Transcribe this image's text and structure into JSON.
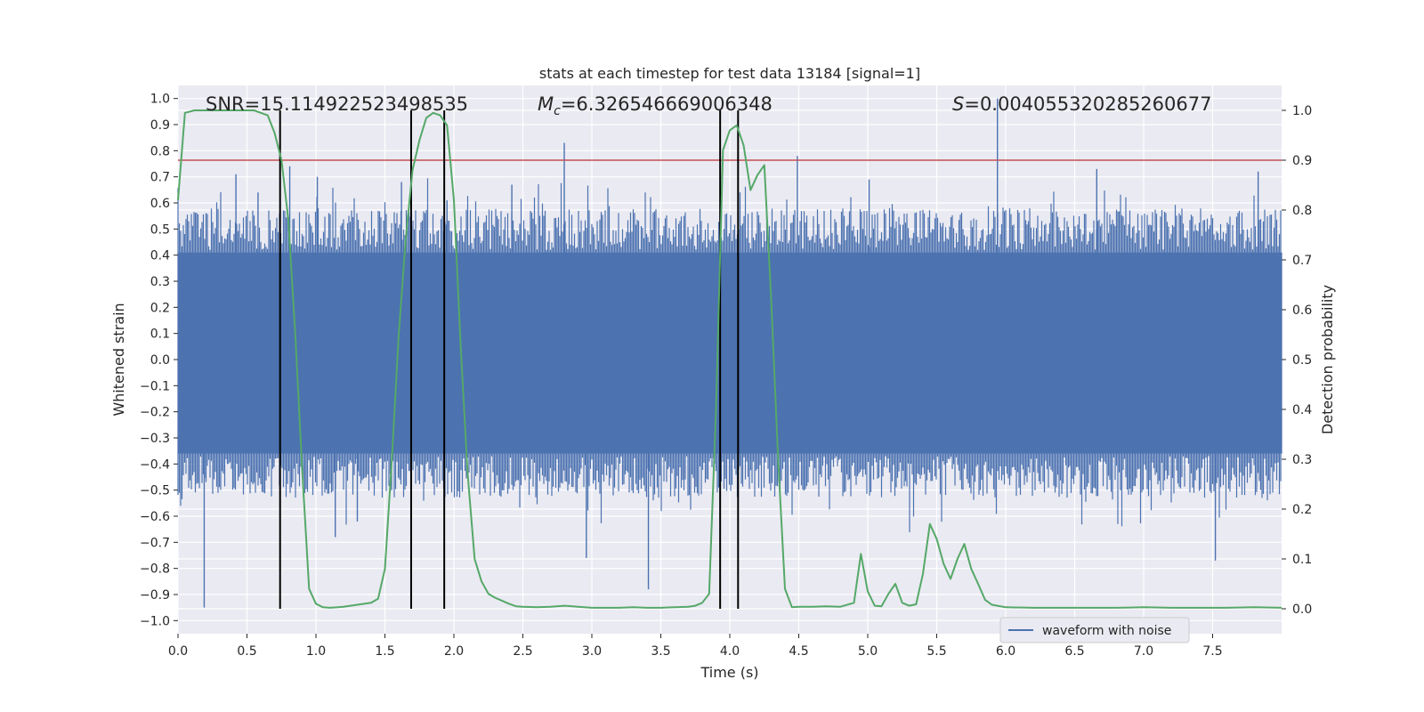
{
  "chart_data": {
    "type": "line",
    "title": "stats at each timestep for test data 13184 [signal=1]",
    "xlabel": "Time (s)",
    "ylabel": "Whitened strain",
    "y2label": "Detection probability",
    "xlim": [
      0.0,
      8.0
    ],
    "ylim": [
      -1.05,
      1.05
    ],
    "y2lim": [
      -0.05,
      1.05
    ],
    "x_ticks": [
      0.0,
      0.5,
      1.0,
      1.5,
      2.0,
      2.5,
      3.0,
      3.5,
      4.0,
      4.5,
      5.0,
      5.5,
      6.0,
      6.5,
      7.0,
      7.5
    ],
    "x_tick_labels": [
      "0.0",
      "0.5",
      "1.0",
      "1.5",
      "2.0",
      "2.5",
      "3.0",
      "3.5",
      "4.0",
      "4.5",
      "5.0",
      "5.5",
      "6.0",
      "6.5",
      "7.0",
      "7.5"
    ],
    "y_ticks": [
      -1.0,
      -0.9,
      -0.8,
      -0.7,
      -0.6,
      -0.5,
      -0.4,
      -0.3,
      -0.2,
      -0.1,
      0.0,
      0.1,
      0.2,
      0.3,
      0.4,
      0.5,
      0.6,
      0.7,
      0.8,
      0.9,
      1.0
    ],
    "y_tick_labels": [
      "−1.0",
      "−0.9",
      "−0.8",
      "−0.7",
      "−0.6",
      "−0.5",
      "−0.4",
      "−0.3",
      "−0.2",
      "−0.1",
      "0.0",
      "0.1",
      "0.2",
      "0.3",
      "0.4",
      "0.5",
      "0.6",
      "0.7",
      "0.8",
      "0.9",
      "1.0"
    ],
    "y2_ticks": [
      0.0,
      0.1,
      0.2,
      0.3,
      0.4,
      0.5,
      0.6,
      0.7,
      0.8,
      0.9,
      1.0
    ],
    "y2_tick_labels": [
      "0.0",
      "0.1",
      "0.2",
      "0.3",
      "0.4",
      "0.5",
      "0.6",
      "0.7",
      "0.8",
      "0.9",
      "1.0"
    ],
    "grid": true,
    "legend": {
      "position": "bottom-right",
      "entries": [
        {
          "label": "waveform with noise",
          "color": "#4c72b0"
        }
      ]
    },
    "annotations": {
      "snr_label": "SNR=15.114922523498535",
      "mc_prefix": "M",
      "mc_sub": "c",
      "mc_value": "=6.326546669006348",
      "s_prefix": "S",
      "s_value": "=0.004055320285260677"
    },
    "threshold": {
      "y2": 0.9,
      "color": "#c44e52"
    },
    "vertical_markers": [
      0.74,
      1.69,
      1.93,
      3.93,
      4.06
    ],
    "marker_color": "#000000",
    "waveform": {
      "name": "waveform with noise",
      "color": "#4c72b0",
      "core_band": [
        -0.36,
        0.41
      ],
      "spikes": [
        {
          "x": 0.19,
          "y": -0.95
        },
        {
          "x": 0.42,
          "y": 0.71
        },
        {
          "x": 0.58,
          "y": 0.64
        },
        {
          "x": 0.81,
          "y": 0.74
        },
        {
          "x": 1.01,
          "y": 0.7
        },
        {
          "x": 1.14,
          "y": -0.68
        },
        {
          "x": 1.3,
          "y": -0.62
        },
        {
          "x": 1.62,
          "y": 0.68
        },
        {
          "x": 1.95,
          "y": 0.61
        },
        {
          "x": 2.42,
          "y": 0.67
        },
        {
          "x": 2.8,
          "y": 0.83
        },
        {
          "x": 2.96,
          "y": -0.76
        },
        {
          "x": 3.41,
          "y": -0.88
        },
        {
          "x": 4.49,
          "y": 0.78
        },
        {
          "x": 5.01,
          "y": 0.69
        },
        {
          "x": 5.94,
          "y": 1.0
        },
        {
          "x": 6.66,
          "y": 0.73
        },
        {
          "x": 7.52,
          "y": -0.77
        },
        {
          "x": 7.83,
          "y": 0.72
        }
      ]
    },
    "detection_probability": {
      "name": "detection probability",
      "color": "#55a868",
      "x": [
        0.0,
        0.05,
        0.12,
        0.25,
        0.4,
        0.55,
        0.65,
        0.7,
        0.75,
        0.8,
        0.85,
        0.9,
        0.95,
        1.0,
        1.05,
        1.1,
        1.2,
        1.3,
        1.4,
        1.45,
        1.5,
        1.55,
        1.6,
        1.65,
        1.7,
        1.75,
        1.8,
        1.85,
        1.9,
        1.95,
        2.0,
        2.05,
        2.1,
        2.15,
        2.2,
        2.25,
        2.3,
        2.4,
        2.45,
        2.5,
        2.6,
        2.7,
        2.8,
        2.9,
        3.0,
        3.1,
        3.2,
        3.3,
        3.4,
        3.5,
        3.6,
        3.7,
        3.75,
        3.8,
        3.85,
        3.9,
        3.95,
        4.0,
        4.05,
        4.1,
        4.15,
        4.2,
        4.25,
        4.3,
        4.35,
        4.4,
        4.45,
        4.5,
        4.6,
        4.7,
        4.8,
        4.9,
        4.95,
        5.0,
        5.05,
        5.1,
        5.15,
        5.2,
        5.25,
        5.3,
        5.35,
        5.4,
        5.45,
        5.5,
        5.55,
        5.6,
        5.65,
        5.7,
        5.75,
        5.8,
        5.85,
        5.9,
        6.0,
        6.2,
        6.4,
        6.6,
        6.8,
        7.0,
        7.2,
        7.4,
        7.6,
        7.8,
        8.0
      ],
      "y": [
        0.82,
        0.995,
        1.0,
        1.0,
        1.0,
        1.0,
        0.99,
        0.955,
        0.9,
        0.78,
        0.55,
        0.28,
        0.04,
        0.01,
        0.003,
        0.002,
        0.004,
        0.008,
        0.012,
        0.02,
        0.08,
        0.3,
        0.55,
        0.74,
        0.88,
        0.94,
        0.985,
        0.995,
        0.99,
        0.97,
        0.82,
        0.52,
        0.27,
        0.1,
        0.055,
        0.03,
        0.022,
        0.01,
        0.005,
        0.004,
        0.003,
        0.004,
        0.006,
        0.004,
        0.002,
        0.002,
        0.002,
        0.003,
        0.002,
        0.002,
        0.003,
        0.004,
        0.006,
        0.012,
        0.03,
        0.4,
        0.92,
        0.96,
        0.97,
        0.93,
        0.84,
        0.87,
        0.89,
        0.62,
        0.3,
        0.04,
        0.003,
        0.004,
        0.004,
        0.005,
        0.004,
        0.012,
        0.11,
        0.035,
        0.006,
        0.005,
        0.03,
        0.05,
        0.012,
        0.006,
        0.009,
        0.07,
        0.17,
        0.14,
        0.09,
        0.06,
        0.1,
        0.13,
        0.08,
        0.05,
        0.018,
        0.008,
        0.003,
        0.002,
        0.002,
        0.002,
        0.002,
        0.003,
        0.002,
        0.002,
        0.002,
        0.003,
        0.002
      ]
    }
  }
}
